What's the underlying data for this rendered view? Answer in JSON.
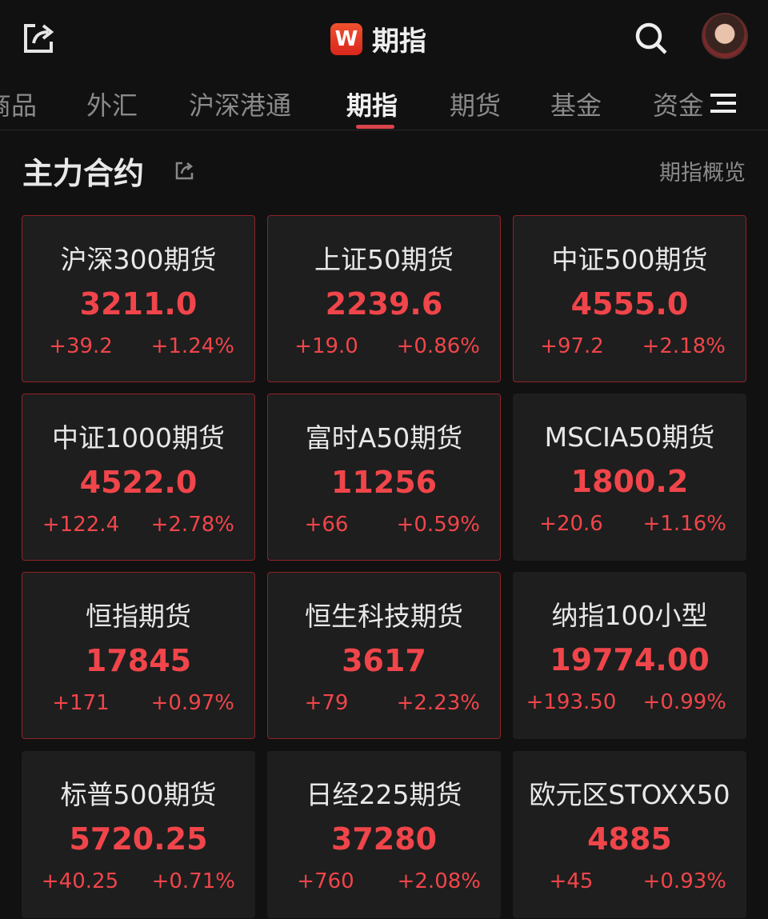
{
  "header": {
    "title": "期指",
    "logo_letter": "W",
    "icons": [
      "share-icon",
      "search-icon",
      "avatar"
    ]
  },
  "tabs": [
    {
      "label": "商品"
    },
    {
      "label": "外汇"
    },
    {
      "label": "沪深港通"
    },
    {
      "label": "期指",
      "active": true
    },
    {
      "label": "期货"
    },
    {
      "label": "基金"
    },
    {
      "label": "资金"
    }
  ],
  "section": {
    "title": "主力合约",
    "link": "期指概览"
  },
  "colors": {
    "up": "#f0454a",
    "background": "#111111",
    "card": "#1e1e1e",
    "accent": "#d9444a"
  },
  "cards": [
    {
      "name": "沪深300期货",
      "price": "3211.0",
      "change": "+39.2",
      "pct": "+1.24%"
    },
    {
      "name": "上证50期货",
      "price": "2239.6",
      "change": "+19.0",
      "pct": "+0.86%"
    },
    {
      "name": "中证500期货",
      "price": "4555.0",
      "change": "+97.2",
      "pct": "+2.18%"
    },
    {
      "name": "中证1000期货",
      "price": "4522.0",
      "change": "+122.4",
      "pct": "+2.78%"
    },
    {
      "name": "富时A50期货",
      "price": "11256",
      "change": "+66",
      "pct": "+0.59%"
    },
    {
      "name": "MSCIA50期货",
      "price": "1800.2",
      "change": "+20.6",
      "pct": "+1.16%"
    },
    {
      "name": "恒指期货",
      "price": "17845",
      "change": "+171",
      "pct": "+0.97%"
    },
    {
      "name": "恒生科技期货",
      "price": "3617",
      "change": "+79",
      "pct": "+2.23%"
    },
    {
      "name": "纳指100小型",
      "price": "19774.00",
      "change": "+193.50",
      "pct": "+0.99%"
    },
    {
      "name": "标普500期货",
      "price": "5720.25",
      "change": "+40.25",
      "pct": "+0.71%"
    },
    {
      "name": "日经225期货",
      "price": "37280",
      "change": "+760",
      "pct": "+2.08%"
    },
    {
      "name": "欧元区STOXX50",
      "price": "4885",
      "change": "+45",
      "pct": "+0.93%"
    }
  ]
}
